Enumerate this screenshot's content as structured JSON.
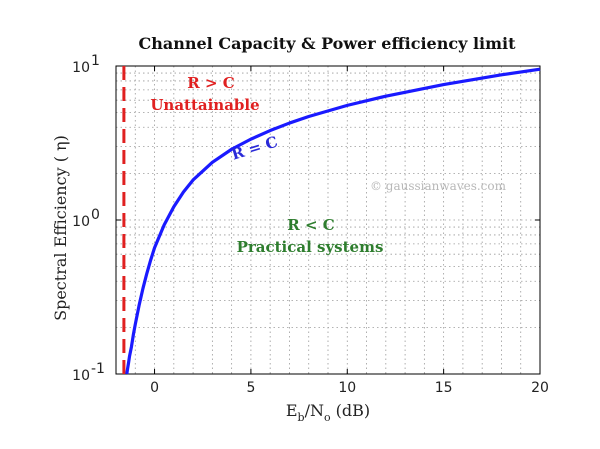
{
  "chart_data": {
    "type": "line",
    "title": "Channel Capacity & Power efficiency limit",
    "xlabel": {
      "main": "E",
      "sub1": "b",
      "mid": "/N",
      "sub2": "o",
      "unit": " (dB)"
    },
    "ylabel": "Spectral Efficiency ( η)",
    "xlim": [
      -2,
      20
    ],
    "ylim": [
      0.1,
      10
    ],
    "yscale": "log",
    "grid": true,
    "xticks": [
      "0",
      "5",
      "10",
      "15",
      "20"
    ],
    "xtick_values": [
      0,
      5,
      10,
      15,
      20
    ],
    "yticks": [
      {
        "base": "10",
        "exp": "-1",
        "value": 0.1
      },
      {
        "base": "10",
        "exp": "0",
        "value": 1
      },
      {
        "base": "10",
        "exp": "1",
        "value": 10
      }
    ],
    "series": [
      {
        "name": "R = C",
        "color": "#1a1aff",
        "x": [
          -1.44,
          -1.4,
          -1.35,
          -1.3,
          -1.2,
          -1.1,
          -1.0,
          -0.8,
          -0.6,
          -0.4,
          -0.2,
          0.0,
          0.5,
          1.0,
          1.5,
          2.0,
          3.0,
          4.0,
          5.0,
          6.0,
          7.0,
          8.0,
          10.0,
          12.0,
          15.0,
          18.0,
          20.0
        ],
        "y": [
          0.1,
          0.108,
          0.118,
          0.13,
          0.15,
          0.18,
          0.21,
          0.28,
          0.36,
          0.45,
          0.55,
          0.66,
          0.93,
          1.22,
          1.52,
          1.82,
          2.37,
          2.88,
          3.35,
          3.81,
          4.26,
          4.7,
          5.55,
          6.37,
          7.58,
          8.76,
          9.54
        ]
      }
    ],
    "shannon_limit": {
      "x": -1.59,
      "color": "#e02020",
      "style": "dashed"
    },
    "annotations": [
      {
        "text": "R > C",
        "color": "#e02020"
      },
      {
        "text": "Unattainable",
        "color": "#e02020"
      },
      {
        "text": "R = C",
        "color": "#2a2ad8"
      },
      {
        "text": "R < C",
        "color": "#2e7d2e"
      },
      {
        "text": "Practical systems",
        "color": "#2e7d2e"
      }
    ],
    "watermark": "© gaussianwaves.com"
  }
}
